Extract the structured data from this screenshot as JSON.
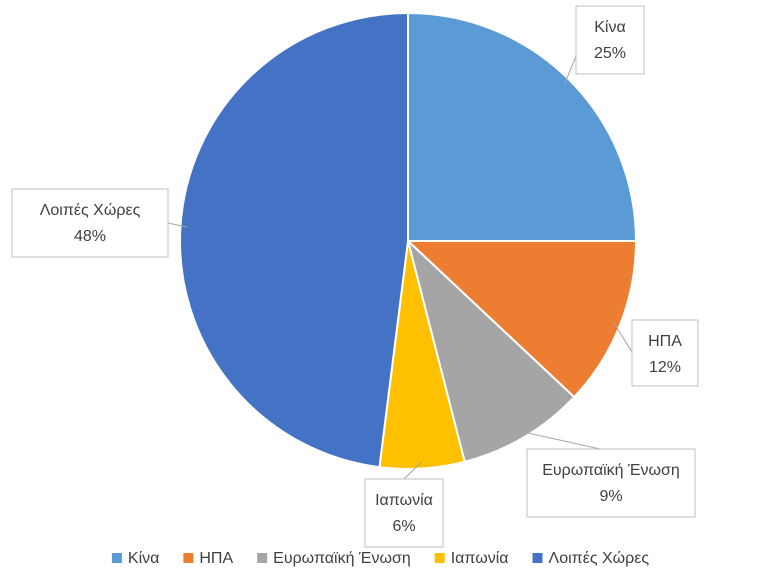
{
  "chart_data": {
    "type": "pie",
    "categories": [
      "Κίνα",
      "ΗΠΑ",
      "Ευρωπαϊκή Ένωση",
      "Ιαπωνία",
      "Λοιπές Χώρες"
    ],
    "values": [
      25,
      12,
      9,
      6,
      48
    ],
    "value_labels": [
      "25%",
      "12%",
      "9%",
      "6%",
      "48%"
    ],
    "colors": [
      "#5b9bd5",
      "#ed7d31",
      "#a5a5a5",
      "#ffc000",
      "#4472c4"
    ],
    "legend": "bottom"
  }
}
